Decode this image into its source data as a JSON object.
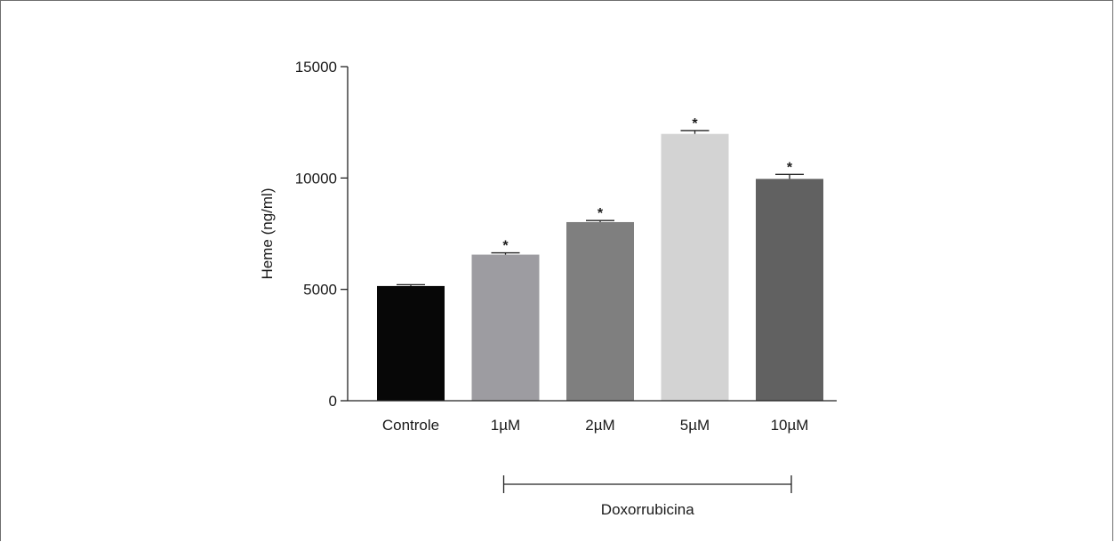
{
  "chart_data": {
    "type": "bar",
    "categories": [
      "Controle",
      "1µM",
      "2µM",
      "5µM",
      "10µM"
    ],
    "values": [
      5150,
      6560,
      8020,
      11980,
      9960
    ],
    "errors": [
      60,
      80,
      70,
      150,
      200
    ],
    "significance": [
      "",
      "*",
      "*",
      "*",
      "*"
    ],
    "bar_colors": [
      "#070707",
      "#9d9ca1",
      "#7f7f7f",
      "#d3d3d3",
      "#616161"
    ],
    "ylabel": "Heme (ng/ml)",
    "ylim": [
      0,
      15000
    ],
    "yticks": [
      0,
      5000,
      10000,
      15000
    ],
    "ytick_labels": [
      "0",
      "5000",
      "10000",
      "15000"
    ],
    "group_bracket": {
      "label": "Doxorrubicina",
      "from_category": "1µM",
      "to_category": "10µM"
    },
    "grid": false,
    "legend": "none"
  }
}
